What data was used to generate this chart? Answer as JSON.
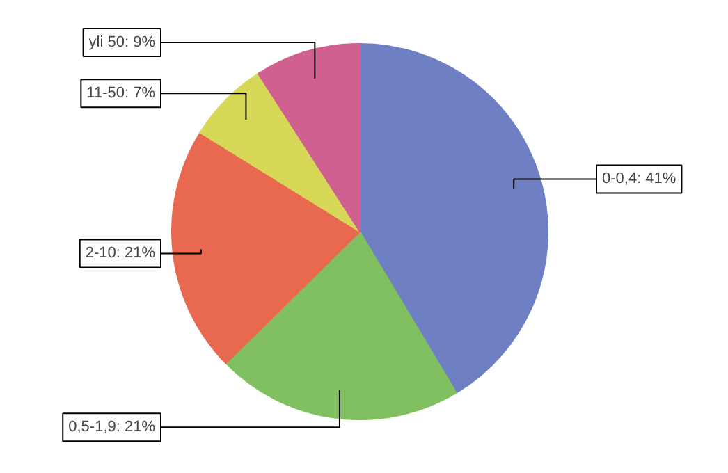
{
  "chart_data": {
    "type": "pie",
    "categories": [
      "0-0,4",
      "0,5-1,9",
      "2-10",
      "11-50",
      "yli 50"
    ],
    "values": [
      41,
      21,
      21,
      7,
      9
    ],
    "colors": [
      "#6f7fc4",
      "#80c060",
      "#e86850",
      "#d8d858",
      "#d06090"
    ],
    "value_labels": [
      "41%",
      "21%",
      "21%",
      "7%",
      "9%"
    ]
  }
}
